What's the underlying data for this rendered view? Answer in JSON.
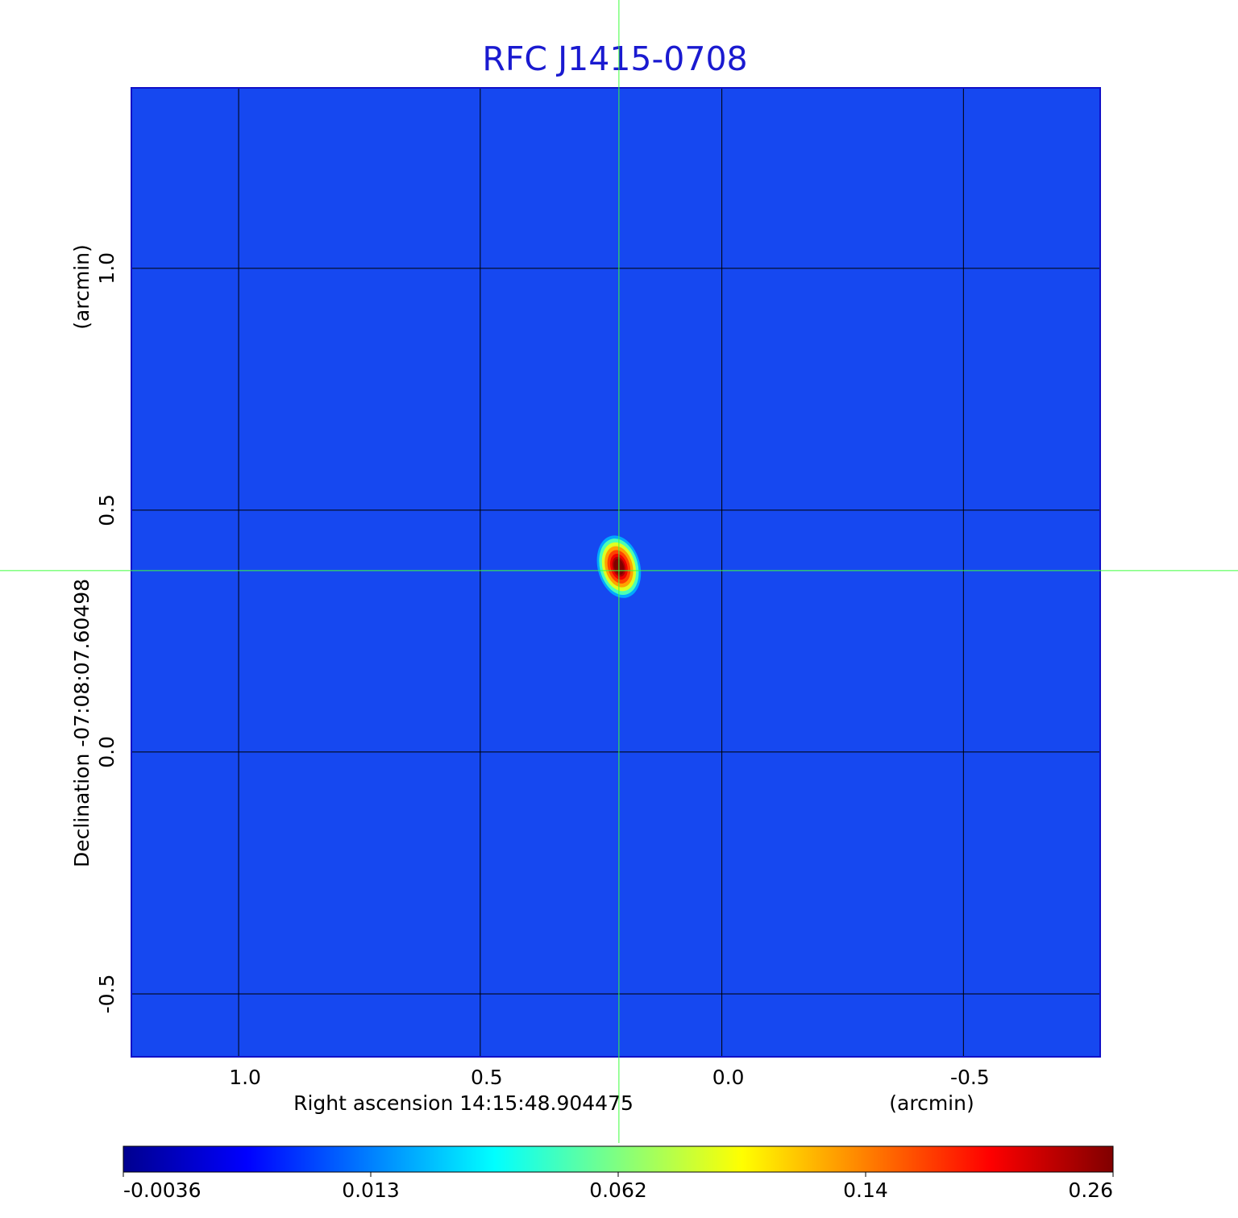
{
  "chart_data": {
    "type": "image",
    "title": "RFC J1415-0708",
    "x_label": "Right ascension  14:15:48.904475",
    "x_unit": "(arcmin)",
    "y_label": "Declination  -07:08:07.60498",
    "y_unit": "(arcmin)",
    "xlim": [
      1.222,
      -0.783
    ],
    "ylim": [
      -0.63,
      1.373
    ],
    "xticks": [
      {
        "value": 1,
        "label": "1.0"
      },
      0.5,
      {
        "value": 0,
        "label": "0.0"
      },
      -0.5
    ],
    "yticks": [
      -0.5,
      {
        "value": 0,
        "label": "0.0"
      },
      0.5,
      {
        "value": 1,
        "label": "1.0"
      }
    ],
    "grid": true,
    "crosshair": {
      "x": 0.213,
      "y": 0.375
    },
    "source": {
      "x": 0.213,
      "y": 0.383,
      "peak": 0.26
    },
    "colorbar": {
      "ticks": [
        -0.0036,
        0.013,
        0.062,
        0.14,
        0.26
      ],
      "cmap": [
        "#00008f",
        "#0000ff",
        "#0080ff",
        "#00ffff",
        "#80ff80",
        "#ffff00",
        "#ff8000",
        "#ff0000",
        "#800000"
      ]
    }
  }
}
